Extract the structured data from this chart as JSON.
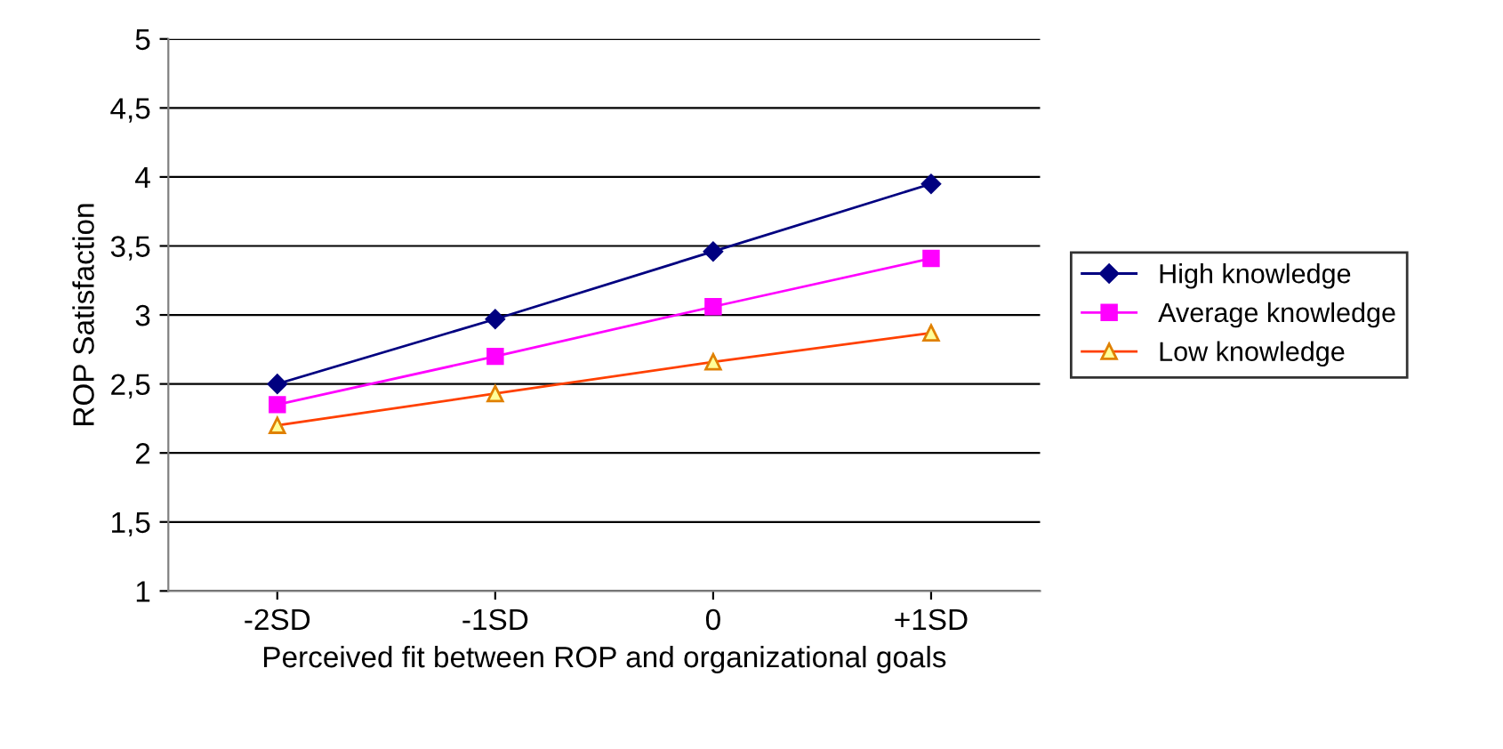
{
  "chart_data": {
    "type": "line",
    "xlabel": "Perceived fit between ROP and organizational goals",
    "ylabel": "ROP Satisfaction",
    "categories": [
      "-2SD",
      "-1SD",
      "0",
      "+1SD"
    ],
    "series": [
      {
        "name": "High knowledge",
        "color": "#000080",
        "marker": "diamond",
        "values": [
          2.5,
          2.97,
          3.46,
          3.95
        ]
      },
      {
        "name": "Average knowledge",
        "color": "#ff00ff",
        "marker": "square",
        "values": [
          2.35,
          2.7,
          3.06,
          3.41
        ]
      },
      {
        "name": "Low knowledge",
        "color": "#ff4000",
        "marker": "triangle",
        "values": [
          2.2,
          2.43,
          2.66,
          2.87
        ]
      }
    ],
    "ylim": [
      1,
      5
    ],
    "yticks": [
      1,
      {
        "value": 1.5,
        "label": "1,5"
      },
      2,
      {
        "value": 2.5,
        "label": "2,5"
      },
      3,
      {
        "value": 3.5,
        "label": "3,5"
      },
      4,
      {
        "value": 4.5,
        "label": "4,5"
      },
      5
    ],
    "grid": "y",
    "legend": "right",
    "line_style": "solid"
  }
}
